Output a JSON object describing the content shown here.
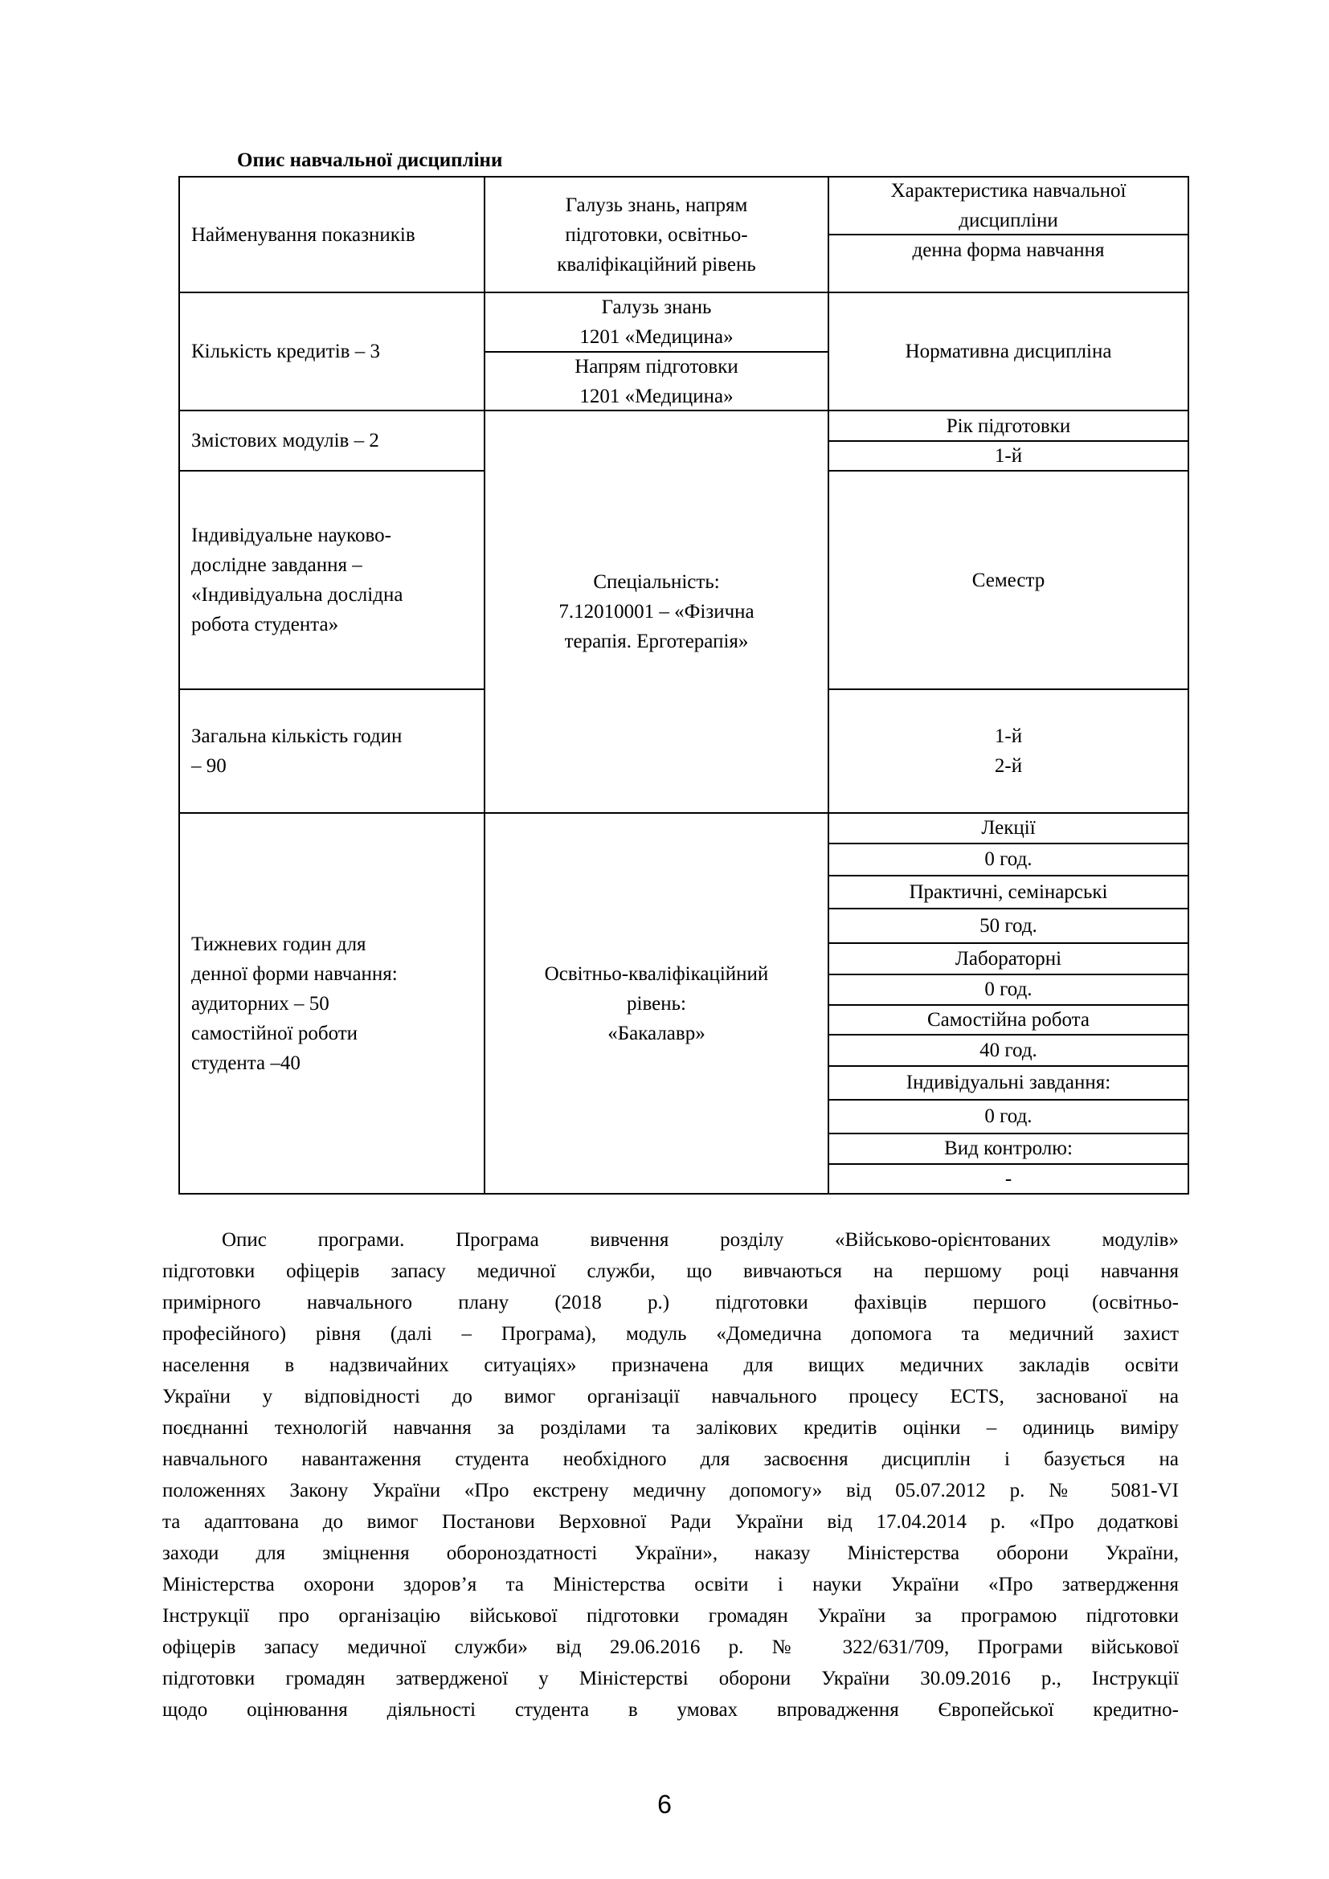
{
  "title": "Опис навчальної дисципліни",
  "table": {
    "h_col1": [
      "Найменування показників"
    ],
    "h_col2": [
      "Галузь знань, напрям",
      "підготовки, освітньо-",
      "кваліфікаційний рівень"
    ],
    "h_col3_top": [
      "Характеристика навчальної",
      "дисципліни"
    ],
    "h_col3_sub": "денна форма навчання",
    "r1_col1": "Кількість кредитів – 3",
    "r1_col2a": [
      "Галузь знань",
      "1201 «Медицина»"
    ],
    "r1_col2b": [
      "Напрям підготовки",
      "1201 «Медицина»"
    ],
    "r1_col3": "Нормативна дисципліна",
    "r2_col1": "Змістових модулів – 2",
    "r2_col3a": "Рік підготовки",
    "r2_col3b": "1-й",
    "r3_col1": [
      "Індивідуальне науково-",
      "дослідне завдання –",
      "«Індивідуальна дослідна",
      "робота студента»"
    ],
    "mid_col2": [
      "Спеціальність:",
      "7.12010001 – «Фізична",
      "терапія. Ерготерапія»"
    ],
    "r3_col3": "Семестр",
    "r4_col1": [
      "Загальна кількість годин",
      "– 90"
    ],
    "r4_col3": [
      "1-й",
      "2-й"
    ],
    "r5_col1": [
      "Тижневих годин для",
      "денної форми навчання:",
      "аудиторних – 50",
      "самостійної роботи",
      "студента –40"
    ],
    "r5_col2": [
      "Освітньо-кваліфікаційний",
      "рівень:",
      "«Бакалавр»"
    ],
    "r5_col3": [
      "Лекції",
      "0 год.",
      "Практичні, семінарські",
      "50 год.",
      "Лабораторні",
      "0 год.",
      "Самостійна робота",
      "40 год.",
      "Індивідуальні завдання:",
      "0 год.",
      "Вид контролю:",
      "-"
    ]
  },
  "paragraph": [
    "Опис програми. Програма вивчення розділу «Військово-орієнтованих модулів»",
    "підготовки офіцерів запасу медичної служби, що вивчаються на першому році навчання",
    "примірного навчального плану (2018 р.) підготовки фахівців першого (освітньо-",
    "професійного) рівня (далі – Програма), модуль «Домедична допомога та медичний захист",
    "населення в надзвичайних ситуаціях» призначена для вищих медичних закладів освіти",
    "України у відповідності до вимог організації навчального процесу ECTS, заснованої на",
    "поєднанні технологій навчання за розділами та залікових кредитів оцінки – одиниць виміру",
    "навчального навантаження студента необхідного для засвоєння дисциплін і базується на",
    "положеннях Закону України «Про екстрену медичну допомогу» від 05.07.2012 р. № 5081-VI",
    "та адаптована до вимог Постанови Верховної Ради України від 17.04.2014 р. «Про додаткові",
    "заходи для зміцнення обороноздатності України», наказу Міністерства оборони України,",
    "Міністерства охорони здоров’я та Міністерства освіти і науки України «Про затвердження",
    "Інструкції про організацію військової підготовки громадян України за програмою підготовки",
    "офіцерів запасу медичної служби» від 29.06.2016 р. № 322/631/709, Програми військової",
    "підготовки громадян затвердженої у Міністерстві оборони України 30.09.2016 р., Інструкції",
    "щодо оцінювання діяльності студента в умовах впровадження Європейської кредитно-"
  ],
  "page_number": "6"
}
